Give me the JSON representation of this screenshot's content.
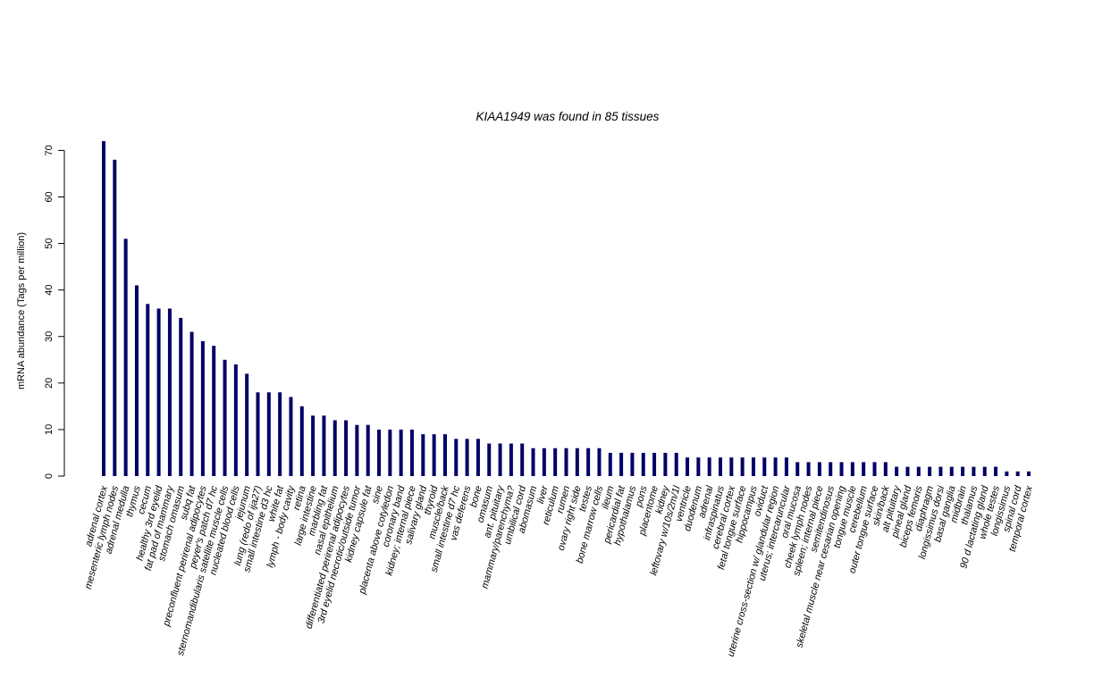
{
  "chart_data": {
    "type": "bar",
    "title": "KIAA1949  was found in  85  tissues",
    "xlabel": "",
    "ylabel": "mRNA abundance (Tags per million)",
    "ylim": [
      0,
      72
    ],
    "yticks": [
      0,
      10,
      20,
      30,
      40,
      50,
      60,
      70
    ],
    "bar_color": "#000066",
    "grid": false,
    "categories": [
      "adrenal cortex",
      "mesenteric lymph nodes",
      "adrenal medulla",
      "thymus",
      "cecum",
      "healthy 3rd eyelid",
      "fat pad of mammary",
      "stomach omasum",
      "subq fat",
      "preconfluent perirenal adipocytes",
      "peyer's patch d7 hc",
      "sternomandibularis satellite muscle cells",
      "nucleated blood cells",
      "jejunum",
      "lung (redo of ija27)",
      "small intestine d3 hc",
      "white fat",
      "lymph - body cavity",
      "retina",
      "large intestine",
      "marbling fat",
      "nasal epithelium",
      "differentiated perirenal adipocytes",
      "3rd eyelid necrotic/outside tumor",
      "kidney capsule fat",
      "sine",
      "placenta above cotyledon",
      "coronary band",
      "kidney; internal piece",
      "salivary gland",
      "thyroid",
      "muscle/back",
      "small intestine d7 hc",
      "vas deferens",
      "bone",
      "omasum",
      "ant. pituitary",
      "mammary/parenchyma?",
      "umbilical cord",
      "abomasum",
      "liver",
      "reticulum",
      "rumen",
      "ovary right side",
      "testes",
      "bone marrow cells",
      "ileum",
      "pericardial fat",
      "hypothalamus",
      "pons",
      "placentome",
      "kidney",
      "leftovary w/10s/2m/1l",
      "ventricle",
      "duodenum",
      "adrenal",
      "infraspinatus",
      "cerebral cortex",
      "fetal tongue surface",
      "hippocampus",
      "oviduct",
      "uterine cross-section w/ glandular region",
      "uterus; intercaruncular",
      "oral mucosa",
      "cheek lymph nodes",
      "spleen; internal piece",
      "semitendinosus",
      "skeletal muscle near cesarian opening",
      "tongue muscle",
      "cerebellum",
      "outer tongue surface",
      "skin/back",
      "alt pituitary",
      "pineal gland",
      "biceps femoris",
      "diaphragm",
      "longissimus dorsi",
      "basal ganglia",
      "midbrain",
      "thalamus",
      "90 d lactating gland",
      "whole testes",
      "longissimus",
      "spinal cord",
      "temporal cortex"
    ],
    "values": [
      72,
      68,
      51,
      41,
      37,
      36,
      36,
      34,
      31,
      29,
      28,
      25,
      24,
      22,
      18,
      18,
      18,
      17,
      15,
      13,
      13,
      12,
      12,
      11,
      11,
      10,
      10,
      10,
      10,
      9,
      9,
      9,
      8,
      8,
      8,
      7,
      7,
      7,
      7,
      6,
      6,
      6,
      6,
      6,
      6,
      6,
      5,
      5,
      5,
      5,
      5,
      5,
      5,
      4,
      4,
      4,
      4,
      4,
      4,
      4,
      4,
      4,
      4,
      3,
      3,
      3,
      3,
      3,
      3,
      3,
      3,
      3,
      2,
      2,
      2,
      2,
      2,
      2,
      2,
      2,
      2,
      2,
      1,
      1,
      1
    ]
  }
}
